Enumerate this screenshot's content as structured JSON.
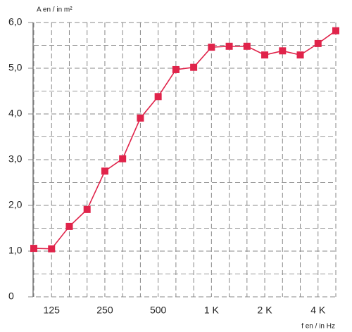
{
  "chart_data": {
    "type": "line",
    "y_label": "A en / in m²",
    "x_label": "f en / in Hz",
    "categories": [
      null,
      "125",
      null,
      null,
      "250",
      null,
      null,
      "500",
      null,
      null,
      "1 K",
      null,
      null,
      "2 K",
      null,
      null,
      "4 K",
      null
    ],
    "series": [
      {
        "color": "#e0234a",
        "values": [
          1.06,
          1.05,
          1.54,
          1.91,
          2.75,
          3.02,
          3.91,
          4.38,
          4.97,
          5.02,
          5.46,
          5.48,
          5.48,
          5.29,
          5.38,
          5.29,
          5.54,
          5.82
        ]
      }
    ],
    "ylim": [
      0,
      6
    ],
    "yticks": [
      0,
      {
        "value": 1,
        "label": "1,0"
      },
      {
        "value": 2,
        "label": "2,0"
      },
      {
        "value": 3,
        "label": "3,0"
      },
      {
        "value": 4,
        "label": "4,0"
      },
      {
        "value": 5,
        "label": "5,0"
      },
      {
        "value": 6,
        "label": "6,0"
      }
    ],
    "minor_yticks": [
      0.5,
      1.5,
      2.5,
      3.5,
      4.5,
      5.5
    ],
    "grid": true
  }
}
